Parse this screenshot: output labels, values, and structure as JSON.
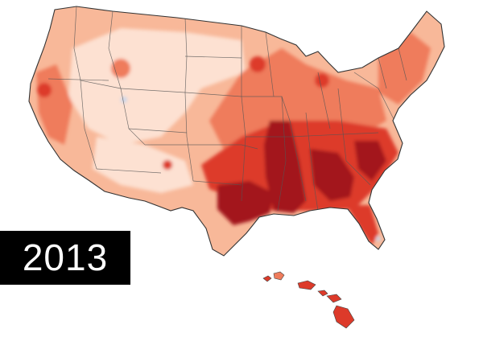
{
  "year": "2013",
  "palette": {
    "background": "#ffffff",
    "lightest": "#fde1d2",
    "light": "#f8b899",
    "medium": "#ef7c5c",
    "dark": "#dd3a2a",
    "darkest": "#a3121a",
    "cool_spot": "#c9d6ea",
    "state_border": "#444444"
  },
  "regions": [
    {
      "name": "west-interior",
      "level": "lightest"
    },
    {
      "name": "northern-plains",
      "level": "lightest"
    },
    {
      "name": "southwest",
      "level": "light"
    },
    {
      "name": "midwest",
      "level": "medium"
    },
    {
      "name": "northeast",
      "level": "medium"
    },
    {
      "name": "southeast",
      "level": "dark"
    },
    {
      "name": "lower-mississippi-valley",
      "level": "darkest"
    },
    {
      "name": "gulf-coast",
      "level": "darkest"
    },
    {
      "name": "hawaii",
      "level": "dark"
    }
  ]
}
